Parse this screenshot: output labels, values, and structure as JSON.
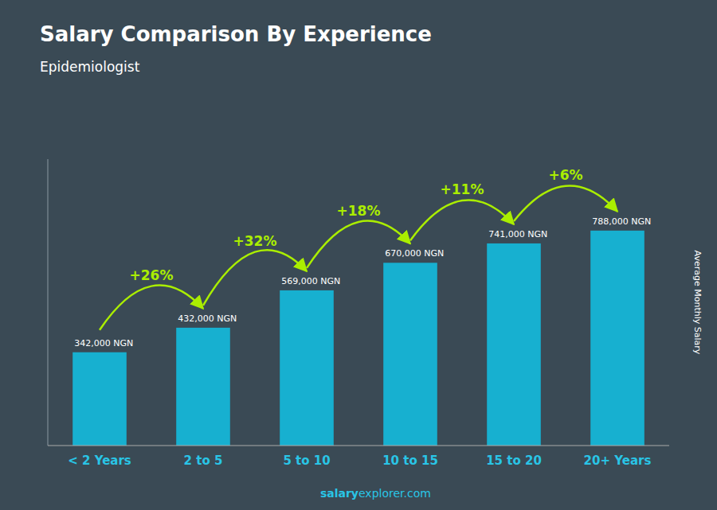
{
  "chart_data": {
    "type": "bar",
    "title": "Salary Comparison By Experience",
    "subtitle": "Epidemiologist",
    "ylabel": "Average Monthly Salary",
    "categories": [
      "< 2 Years",
      "2 to 5",
      "5 to 10",
      "10 to 15",
      "15 to 20",
      "20+ Years"
    ],
    "values": [
      342000,
      432000,
      569000,
      670000,
      741000,
      788000
    ],
    "value_labels": [
      "342,000 NGN",
      "432,000 NGN",
      "569,000 NGN",
      "670,000 NGN",
      "741,000 NGN",
      "788,000 NGN"
    ],
    "data_labels": true,
    "annotations": [
      "+26%",
      "+32%",
      "+18%",
      "+11%",
      "+6%"
    ],
    "footer": [
      "salary",
      "explorer.com"
    ],
    "color": "#17b0d0",
    "ylim": [
      0,
      1050000
    ],
    "tick_labels": "x",
    "grid": false
  }
}
